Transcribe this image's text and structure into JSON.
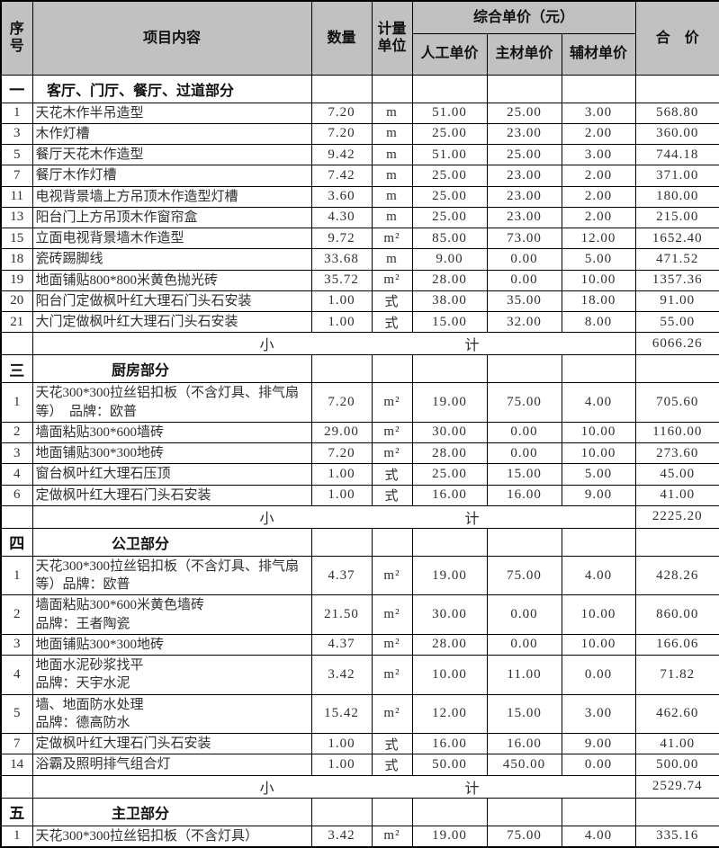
{
  "table": {
    "header": {
      "serial": "序\n号",
      "content": "项目内容",
      "qty": "数量",
      "unit": "计量\n单位",
      "composite_group": "综合单价（元）",
      "labor": "人工单价",
      "main": "主材单价",
      "aux": "辅材单价",
      "total": "合　价"
    },
    "subtotal_label_left": "小",
    "subtotal_label_right": "计",
    "sections": [
      {
        "no": "一",
        "title": "客厅、门厅、餐厅、过道部分",
        "rows": [
          {
            "no": "1",
            "content": "天花木作半吊造型",
            "qty": "7.20",
            "unit": "m",
            "labor": "51.00",
            "main": "25.00",
            "aux": "3.00",
            "total": "568.80",
            "lines": 1
          },
          {
            "no": "3",
            "content": "木作灯槽",
            "qty": "7.20",
            "unit": "m",
            "labor": "25.00",
            "main": "23.00",
            "aux": "2.00",
            "total": "360.00",
            "lines": 1
          },
          {
            "no": "5",
            "content": "餐厅天花木作造型",
            "qty": "9.42",
            "unit": "m",
            "labor": "51.00",
            "main": "25.00",
            "aux": "3.00",
            "total": "744.18",
            "lines": 1
          },
          {
            "no": "7",
            "content": "餐厅木作灯槽",
            "qty": "7.42",
            "unit": "m",
            "labor": "25.00",
            "main": "23.00",
            "aux": "2.00",
            "total": "371.00",
            "lines": 1
          },
          {
            "no": "11",
            "content": "电视背景墙上方吊顶木作造型灯槽",
            "qty": "3.60",
            "unit": "m",
            "labor": "25.00",
            "main": "23.00",
            "aux": "2.00",
            "total": "180.00",
            "lines": 1
          },
          {
            "no": "13",
            "content": "阳台门上方吊顶木作窗帘盒",
            "qty": "4.30",
            "unit": "m",
            "labor": "25.00",
            "main": "23.00",
            "aux": "2.00",
            "total": "215.00",
            "lines": 1
          },
          {
            "no": "15",
            "content": "立面电视背景墙木作造型",
            "qty": "9.72",
            "unit": "m²",
            "labor": "85.00",
            "main": "73.00",
            "aux": "12.00",
            "total": "1652.40",
            "lines": 1
          },
          {
            "no": "18",
            "content": "瓷砖踢脚线",
            "qty": "33.68",
            "unit": "m",
            "labor": "9.00",
            "main": "0.00",
            "aux": "5.00",
            "total": "471.52",
            "lines": 1
          },
          {
            "no": "19",
            "content": "地面铺贴800*800米黄色抛光砖",
            "qty": "35.72",
            "unit": "m²",
            "labor": "28.00",
            "main": "0.00",
            "aux": "10.00",
            "total": "1357.36",
            "lines": 1
          },
          {
            "no": "20",
            "content": "阳台门定做枫叶红大理石门头石安装",
            "qty": "1.00",
            "unit": "式",
            "labor": "38.00",
            "main": "35.00",
            "aux": "18.00",
            "total": "91.00",
            "lines": 1
          },
          {
            "no": "21",
            "content": "大门定做枫叶红大理石门头石安装",
            "qty": "1.00",
            "unit": "式",
            "labor": "15.00",
            "main": "32.00",
            "aux": "8.00",
            "total": "55.00",
            "lines": 1
          }
        ],
        "subtotal": "6066.26"
      },
      {
        "no": "三",
        "title": "厨房部分",
        "rows": [
          {
            "no": "1",
            "content": "天花300*300拉丝铝扣板（不含灯具、排气扇等）　品牌：欧普",
            "qty": "7.20",
            "unit": "m²",
            "labor": "19.00",
            "main": "75.00",
            "aux": "4.00",
            "total": "705.60",
            "lines": 2
          },
          {
            "no": "2",
            "content": "墙面粘贴300*600墙砖",
            "qty": "29.00",
            "unit": "m²",
            "labor": "30.00",
            "main": "0.00",
            "aux": "10.00",
            "total": "1160.00",
            "lines": 1
          },
          {
            "no": "3",
            "content": "地面铺贴300*300地砖",
            "qty": "7.20",
            "unit": "m²",
            "labor": "28.00",
            "main": "0.00",
            "aux": "10.00",
            "total": "273.60",
            "lines": 1
          },
          {
            "no": "4",
            "content": "窗台枫叶红大理石压顶",
            "qty": "1.00",
            "unit": "式",
            "labor": "25.00",
            "main": "15.00",
            "aux": "5.00",
            "total": "45.00",
            "lines": 1
          },
          {
            "no": "6",
            "content": "定做枫叶红大理石门头石安装",
            "qty": "1.00",
            "unit": "式",
            "labor": "16.00",
            "main": "16.00",
            "aux": "9.00",
            "total": "41.00",
            "lines": 1
          }
        ],
        "subtotal": "2225.20"
      },
      {
        "no": "四",
        "title": "公卫部分",
        "rows": [
          {
            "no": "1",
            "content": "天花300*300拉丝铝扣板（不含灯具、排气扇等）品牌：欧普",
            "qty": "4.37",
            "unit": "m²",
            "labor": "19.00",
            "main": "75.00",
            "aux": "4.00",
            "total": "428.26",
            "lines": 2
          },
          {
            "no": "2",
            "content": "墙面粘贴300*600米黄色墙砖\n品牌：王者陶瓷",
            "qty": "21.50",
            "unit": "m²",
            "labor": "30.00",
            "main": "0.00",
            "aux": "10.00",
            "total": "860.00",
            "lines": 2
          },
          {
            "no": "3",
            "content": "地面铺贴300*300地砖",
            "qty": "4.37",
            "unit": "m²",
            "labor": "28.00",
            "main": "0.00",
            "aux": "10.00",
            "total": "166.06",
            "lines": 1
          },
          {
            "no": "4",
            "content": "地面水泥砂浆找平\n品牌：天宇水泥",
            "qty": "3.42",
            "unit": "m²",
            "labor": "10.00",
            "main": "11.00",
            "aux": "0.00",
            "total": "71.82",
            "lines": 2
          },
          {
            "no": "5",
            "content": "墙、地面防水处理\n品牌：德高防水",
            "qty": "15.42",
            "unit": "m²",
            "labor": "12.00",
            "main": "15.00",
            "aux": "3.00",
            "total": "462.60",
            "lines": 2
          },
          {
            "no": "7",
            "content": "定做枫叶红大理石门头石安装",
            "qty": "1.00",
            "unit": "式",
            "labor": "16.00",
            "main": "16.00",
            "aux": "9.00",
            "total": "41.00",
            "lines": 1
          },
          {
            "no": "14",
            "content": "浴霸及照明排气组合灯",
            "qty": "1.00",
            "unit": "式",
            "labor": "50.00",
            "main": "450.00",
            "aux": "0.00",
            "total": "500.00",
            "lines": 1
          }
        ],
        "subtotal": "2529.74"
      },
      {
        "no": "五",
        "title": "主卫部分",
        "rows": [
          {
            "no": "1",
            "content": "天花300*300拉丝铝扣板（不含灯具）",
            "qty": "3.42",
            "unit": "m²",
            "labor": "19.00",
            "main": "75.00",
            "aux": "4.00",
            "total": "335.16",
            "lines": 1
          }
        ],
        "subtotal": null
      }
    ]
  }
}
